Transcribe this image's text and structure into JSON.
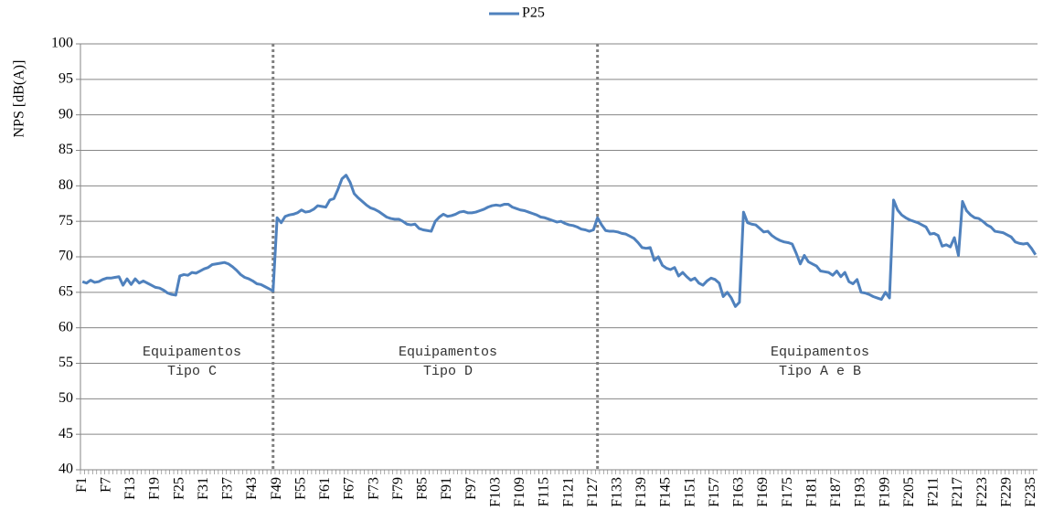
{
  "chart_data": {
    "type": "line",
    "y_label": "NPS [dB(A)]",
    "ylim": [
      40,
      100
    ],
    "yticks": [
      40,
      45,
      50,
      55,
      60,
      65,
      70,
      75,
      80,
      85,
      90,
      95,
      100
    ],
    "grid": true,
    "legend": "top",
    "annotations": [
      [
        "Equipamentos",
        "Tipo C"
      ],
      [
        "Equipamentos",
        "Tipo D"
      ],
      [
        "Equipamentos",
        "Tipo A e B"
      ]
    ],
    "categories": [
      "F1",
      null,
      null,
      null,
      null,
      null,
      "F7",
      null,
      null,
      null,
      null,
      null,
      "F13",
      null,
      null,
      null,
      null,
      null,
      "F19",
      null,
      null,
      null,
      null,
      null,
      "F25",
      null,
      null,
      null,
      null,
      null,
      "F31",
      null,
      null,
      null,
      null,
      null,
      "F37",
      null,
      null,
      null,
      null,
      null,
      "F43",
      null,
      null,
      null,
      null,
      null,
      "F49",
      null,
      null,
      null,
      null,
      null,
      "F55",
      null,
      null,
      null,
      null,
      null,
      "F61",
      null,
      null,
      null,
      null,
      null,
      "F67",
      null,
      null,
      null,
      null,
      null,
      "F73",
      null,
      null,
      null,
      null,
      null,
      "F79",
      null,
      null,
      null,
      null,
      null,
      "F85",
      null,
      null,
      null,
      null,
      null,
      "F91",
      null,
      null,
      null,
      null,
      null,
      "F97",
      null,
      null,
      null,
      null,
      null,
      "F103",
      null,
      null,
      null,
      null,
      null,
      "F109",
      null,
      null,
      null,
      null,
      null,
      "F115",
      null,
      null,
      null,
      null,
      null,
      "F121",
      null,
      null,
      null,
      null,
      null,
      "F127",
      null,
      null,
      null,
      null,
      null,
      "F133",
      null,
      null,
      null,
      null,
      null,
      "F139",
      null,
      null,
      null,
      null,
      null,
      "F145",
      null,
      null,
      null,
      null,
      null,
      "F151",
      null,
      null,
      null,
      null,
      null,
      "F157",
      null,
      null,
      null,
      null,
      null,
      "F163",
      null,
      null,
      null,
      null,
      null,
      "F169",
      null,
      null,
      null,
      null,
      null,
      "F175",
      null,
      null,
      null,
      null,
      null,
      "F181",
      null,
      null,
      null,
      null,
      null,
      "F187",
      null,
      null,
      null,
      null,
      null,
      "F193",
      null,
      null,
      null,
      null,
      null,
      "F199",
      null,
      null,
      null,
      null,
      null,
      "F205",
      null,
      null,
      null,
      null,
      null,
      "F211",
      null,
      null,
      null,
      null,
      null,
      "F217",
      null,
      null,
      null,
      null,
      null,
      "F223",
      null,
      null,
      null,
      null,
      null,
      "F229",
      null,
      null,
      null,
      null,
      null,
      "F235",
      null
    ],
    "series": [
      {
        "name": "P25",
        "color": "#4f81bd",
        "values": [
          66.5,
          66.3,
          66.7,
          66.4,
          66.5,
          66.8,
          67.0,
          67.0,
          67.1,
          67.2,
          66.0,
          66.9,
          66.1,
          66.9,
          66.3,
          66.6,
          66.3,
          66.0,
          65.7,
          65.6,
          65.3,
          64.9,
          64.7,
          64.6,
          67.3,
          67.5,
          67.4,
          67.8,
          67.7,
          68.0,
          68.3,
          68.5,
          68.9,
          69.0,
          69.1,
          69.2,
          69.0,
          68.6,
          68.1,
          67.5,
          67.1,
          66.9,
          66.6,
          66.2,
          66.1,
          65.8,
          65.5,
          65.2,
          75.5,
          74.8,
          75.7,
          75.9,
          76.0,
          76.2,
          76.6,
          76.3,
          76.4,
          76.7,
          77.2,
          77.1,
          77.0,
          78.0,
          78.2,
          79.5,
          81.0,
          81.5,
          80.5,
          78.9,
          78.3,
          77.8,
          77.3,
          76.9,
          76.7,
          76.4,
          76.0,
          75.6,
          75.4,
          75.3,
          75.3,
          75.0,
          74.6,
          74.5,
          74.6,
          74.0,
          73.8,
          73.7,
          73.6,
          75.0,
          75.6,
          76.0,
          75.7,
          75.8,
          76.0,
          76.3,
          76.4,
          76.2,
          76.2,
          76.3,
          76.5,
          76.7,
          77.0,
          77.2,
          77.3,
          77.2,
          77.4,
          77.4,
          77.0,
          76.8,
          76.6,
          76.5,
          76.3,
          76.1,
          75.9,
          75.6,
          75.5,
          75.3,
          75.1,
          74.9,
          75.0,
          74.7,
          74.5,
          74.4,
          74.2,
          73.9,
          73.8,
          73.6,
          73.8,
          75.5,
          74.5,
          73.7,
          73.6,
          73.6,
          73.5,
          73.3,
          73.2,
          72.9,
          72.6,
          72.0,
          71.3,
          71.2,
          71.3,
          69.5,
          70.0,
          68.8,
          68.4,
          68.2,
          68.5,
          67.3,
          67.8,
          67.2,
          66.7,
          67.0,
          66.3,
          66.0,
          66.6,
          67.0,
          66.8,
          66.3,
          64.4,
          65.0,
          64.2,
          63.0,
          63.6,
          76.3,
          74.8,
          74.6,
          74.5,
          74.0,
          73.5,
          73.6,
          73.0,
          72.6,
          72.3,
          72.1,
          72.0,
          71.8,
          70.5,
          69.0,
          70.2,
          69.3,
          69.0,
          68.7,
          68.0,
          67.9,
          67.8,
          67.4,
          68.0,
          67.2,
          67.8,
          66.5,
          66.2,
          66.8,
          65.0,
          64.9,
          64.7,
          64.4,
          64.2,
          64.0,
          65.0,
          64.2,
          78.0,
          76.6,
          75.9,
          75.5,
          75.2,
          75.0,
          74.8,
          74.5,
          74.2,
          73.2,
          73.3,
          73.0,
          71.5,
          71.7,
          71.4,
          72.7,
          70.2,
          77.8,
          76.5,
          75.9,
          75.5,
          75.4,
          75.0,
          74.5,
          74.2,
          73.6,
          73.5,
          73.4,
          73.1,
          72.8,
          72.1,
          71.9,
          71.8,
          71.9,
          71.2,
          70.3
        ]
      }
    ]
  }
}
